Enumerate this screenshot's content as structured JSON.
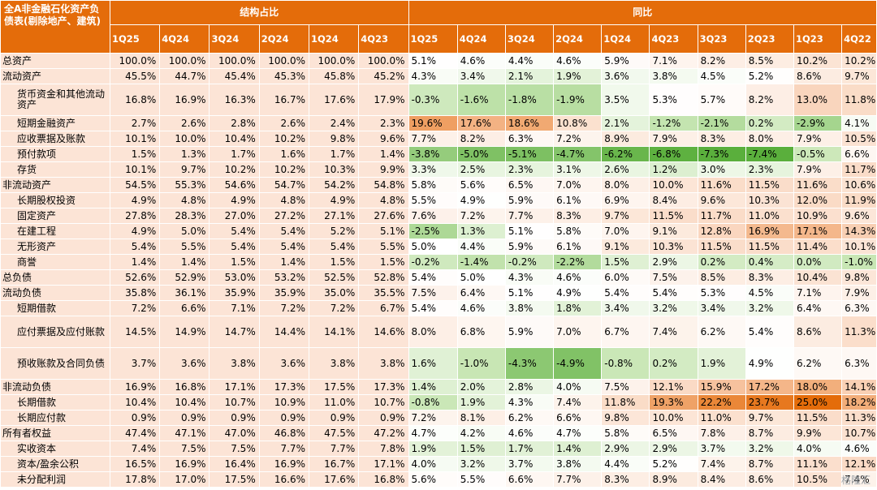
{
  "header": {
    "corner": "全A非金融石化资产负债表(剔除地产、建筑)",
    "group_structure": "结构占比",
    "group_yoy": "同比",
    "structure_quarters": [
      "1Q25",
      "4Q24",
      "3Q24",
      "2Q24",
      "1Q24",
      "4Q23"
    ],
    "yoy_quarters": [
      "1Q25",
      "4Q24",
      "3Q24",
      "2Q24",
      "1Q24",
      "4Q23",
      "3Q23",
      "2Q23",
      "1Q23",
      "4Q22"
    ]
  },
  "rows": [
    {
      "label": "总资产",
      "indent": 1,
      "s": [
        "100.0%",
        "100.0%",
        "100.0%",
        "100.0%",
        "100.0%",
        "100.0%"
      ],
      "y": [
        "5.1%",
        "4.6%",
        "4.4%",
        "4.6%",
        "5.9%",
        "7.1%",
        "8.2%",
        "8.5%",
        "10.2%",
        "10.2%"
      ]
    },
    {
      "label": "流动资产",
      "indent": 1,
      "s": [
        "45.5%",
        "44.7%",
        "45.4%",
        "45.3%",
        "45.8%",
        "45.2%"
      ],
      "y": [
        "4.3%",
        "3.4%",
        "2.1%",
        "1.9%",
        "3.6%",
        "3.8%",
        "4.5%",
        "5.2%",
        "8.6%",
        "9.7%"
      ]
    },
    {
      "label": "货币资金和其他流动资产",
      "indent": 2,
      "s": [
        "16.8%",
        "16.9%",
        "16.3%",
        "16.7%",
        "17.6%",
        "17.9%"
      ],
      "y": [
        "-0.3%",
        "-1.6%",
        "-1.8%",
        "-1.9%",
        "3.5%",
        "5.3%",
        "5.7%",
        "8.2%",
        "13.0%",
        "11.8%"
      ]
    },
    {
      "label": "短期金融资产",
      "indent": 2,
      "s": [
        "2.7%",
        "2.6%",
        "2.8%",
        "2.6%",
        "2.4%",
        "2.3%"
      ],
      "y": [
        "19.6%",
        "17.6%",
        "18.6%",
        "10.8%",
        "2.1%",
        "-1.2%",
        "-2.1%",
        "0.2%",
        "-2.9%",
        "4.1%"
      ]
    },
    {
      "label": "应收票据及账款",
      "indent": 2,
      "s": [
        "10.1%",
        "10.0%",
        "10.4%",
        "10.2%",
        "9.8%",
        "9.6%"
      ],
      "y": [
        "7.7%",
        "8.2%",
        "6.3%",
        "7.2%",
        "8.9%",
        "7.9%",
        "8.3%",
        "8.0%",
        "7.9%",
        "10.5%"
      ]
    },
    {
      "label": "预付款项",
      "indent": 2,
      "s": [
        "1.5%",
        "1.3%",
        "1.7%",
        "1.6%",
        "1.7%",
        "1.4%"
      ],
      "y": [
        "-3.8%",
        "-5.0%",
        "-5.1%",
        "-4.7%",
        "-6.2%",
        "-6.8%",
        "-7.3%",
        "-7.4%",
        "-0.5%",
        "6.6%"
      ]
    },
    {
      "label": "存货",
      "indent": 2,
      "s": [
        "10.1%",
        "9.7%",
        "10.2%",
        "10.2%",
        "10.3%",
        "9.9%"
      ],
      "y": [
        "3.3%",
        "2.5%",
        "2.3%",
        "3.1%",
        "2.6%",
        "1.2%",
        "3.0%",
        "2.3%",
        "7.9%",
        "11.7%"
      ]
    },
    {
      "label": "非流动资产",
      "indent": 1,
      "s": [
        "54.5%",
        "55.3%",
        "54.6%",
        "54.7%",
        "54.2%",
        "54.8%"
      ],
      "y": [
        "5.8%",
        "5.6%",
        "6.5%",
        "7.0%",
        "8.0%",
        "10.0%",
        "11.6%",
        "11.5%",
        "11.6%",
        "10.6%"
      ]
    },
    {
      "label": "长期股权投资",
      "indent": 2,
      "s": [
        "4.9%",
        "4.8%",
        "4.9%",
        "4.8%",
        "4.9%",
        "4.8%"
      ],
      "y": [
        "5.5%",
        "4.9%",
        "5.9%",
        "6.1%",
        "6.9%",
        "8.4%",
        "9.6%",
        "10.3%",
        "12.0%",
        "11.9%"
      ]
    },
    {
      "label": "固定资产",
      "indent": 2,
      "s": [
        "27.8%",
        "28.3%",
        "27.0%",
        "27.2%",
        "27.1%",
        "27.6%"
      ],
      "y": [
        "7.6%",
        "7.2%",
        "7.7%",
        "8.3%",
        "9.7%",
        "11.5%",
        "11.7%",
        "11.0%",
        "10.9%",
        "9.6%"
      ]
    },
    {
      "label": "在建工程",
      "indent": 2,
      "s": [
        "4.9%",
        "5.0%",
        "5.4%",
        "5.4%",
        "5.2%",
        "5.1%"
      ],
      "y": [
        "-2.5%",
        "1.3%",
        "5.1%",
        "5.8%",
        "7.0%",
        "9.1%",
        "12.8%",
        "16.9%",
        "17.1%",
        "14.3%"
      ]
    },
    {
      "label": "无形资产",
      "indent": 2,
      "s": [
        "5.4%",
        "5.5%",
        "5.4%",
        "5.4%",
        "5.4%",
        "5.5%"
      ],
      "y": [
        "5.0%",
        "4.4%",
        "5.9%",
        "6.1%",
        "9.1%",
        "10.3%",
        "11.5%",
        "11.5%",
        "11.4%",
        "10.1%"
      ]
    },
    {
      "label": "商誉",
      "indent": 2,
      "s": [
        "1.4%",
        "1.4%",
        "1.5%",
        "1.4%",
        "1.5%",
        "1.5%"
      ],
      "y": [
        "-0.2%",
        "-1.4%",
        "-0.2%",
        "-2.2%",
        "1.5%",
        "2.9%",
        "0.2%",
        "0.4%",
        "0.0%",
        "-1.0%"
      ]
    },
    {
      "label": "总负债",
      "indent": 1,
      "s": [
        "52.6%",
        "52.9%",
        "53.0%",
        "53.2%",
        "52.5%",
        "52.8%"
      ],
      "y": [
        "5.4%",
        "5.0%",
        "4.3%",
        "4.6%",
        "6.0%",
        "7.5%",
        "8.5%",
        "8.3%",
        "10.4%",
        "9.8%"
      ]
    },
    {
      "label": "流动负债",
      "indent": 1,
      "s": [
        "35.8%",
        "36.1%",
        "35.9%",
        "35.9%",
        "35.0%",
        "35.5%"
      ],
      "y": [
        "7.5%",
        "6.4%",
        "5.1%",
        "4.9%",
        "5.4%",
        "5.4%",
        "5.3%",
        "4.5%",
        "7.1%",
        "7.9%"
      ]
    },
    {
      "label": "短期借款",
      "indent": 2,
      "s": [
        "7.2%",
        "6.6%",
        "7.1%",
        "7.2%",
        "7.2%",
        "6.7%"
      ],
      "y": [
        "5.4%",
        "4.6%",
        "3.8%",
        "1.8%",
        "3.4%",
        "3.2%",
        "3.4%",
        "3.2%",
        "6.4%",
        "6.3%"
      ]
    },
    {
      "label": "应付票据及应付账款",
      "indent": 2,
      "s": [
        "14.5%",
        "14.9%",
        "14.7%",
        "14.4%",
        "14.1%",
        "14.6%"
      ],
      "y": [
        "8.0%",
        "6.8%",
        "5.9%",
        "7.0%",
        "6.7%",
        "7.4%",
        "6.2%",
        "5.4%",
        "8.6%",
        "11.3%"
      ]
    },
    {
      "label": "预收账款及合同负债",
      "indent": 2,
      "s": [
        "3.7%",
        "3.6%",
        "3.8%",
        "3.6%",
        "3.8%",
        "3.8%"
      ],
      "y": [
        "1.6%",
        "-1.0%",
        "-4.3%",
        "-4.9%",
        "-0.8%",
        "0.2%",
        "1.9%",
        "4.9%",
        "6.2%",
        "6.3%"
      ]
    },
    {
      "label": "非流动负债",
      "indent": 1,
      "s": [
        "16.9%",
        "16.8%",
        "17.1%",
        "17.3%",
        "17.5%",
        "17.3%"
      ],
      "y": [
        "1.4%",
        "2.0%",
        "2.8%",
        "4.0%",
        "7.5%",
        "12.1%",
        "15.9%",
        "17.2%",
        "18.0%",
        "14.1%"
      ]
    },
    {
      "label": "长期借款",
      "indent": 2,
      "s": [
        "10.4%",
        "10.4%",
        "10.7%",
        "10.9%",
        "11.0%",
        "10.7%"
      ],
      "y": [
        "-0.8%",
        "1.9%",
        "4.3%",
        "7.4%",
        "11.8%",
        "19.3%",
        "22.2%",
        "23.7%",
        "25.0%",
        "18.2%"
      ]
    },
    {
      "label": "长期应付款",
      "indent": 2,
      "s": [
        "0.9%",
        "0.9%",
        "0.9%",
        "0.9%",
        "0.9%",
        "0.9%"
      ],
      "y": [
        "7.2%",
        "8.1%",
        "6.2%",
        "6.6%",
        "9.8%",
        "10.0%",
        "11.0%",
        "9.7%",
        "11.5%",
        "11.3%"
      ]
    },
    {
      "label": "所有者权益",
      "indent": 1,
      "s": [
        "47.4%",
        "47.1%",
        "47.0%",
        "46.8%",
        "47.5%",
        "47.2%"
      ],
      "y": [
        "4.7%",
        "4.2%",
        "4.6%",
        "4.7%",
        "5.8%",
        "6.5%",
        "7.8%",
        "8.7%",
        "9.9%",
        "10.7%"
      ]
    },
    {
      "label": "实收资本",
      "indent": 2,
      "s": [
        "7.4%",
        "7.5%",
        "7.5%",
        "7.7%",
        "7.7%",
        "7.8%"
      ],
      "y": [
        "1.9%",
        "1.5%",
        "1.7%",
        "1.4%",
        "2.9%",
        "2.9%",
        "3.7%",
        "3.2%",
        "4.0%",
        "4.6%"
      ]
    },
    {
      "label": "资本/盈余公积",
      "indent": 2,
      "s": [
        "16.5%",
        "16.9%",
        "16.4%",
        "16.9%",
        "16.7%",
        "17.1%"
      ],
      "y": [
        "4.0%",
        "3.2%",
        "3.7%",
        "3.8%",
        "4.4%",
        "5.2%",
        "7.4%",
        "8.7%",
        "11.1%",
        "12.1%"
      ]
    },
    {
      "label": "未分配利润",
      "indent": 2,
      "s": [
        "17.8%",
        "17.0%",
        "17.5%",
        "16.6%",
        "17.6%",
        "16.8%"
      ],
      "y": [
        "5.6%",
        "5.5%",
        "6.6%",
        "7.7%",
        "8.3%",
        "8.9%",
        "8.4%",
        "8.6%",
        "10.5%",
        "7.4%"
      ]
    }
  ],
  "watermark": "格隆汇",
  "colors": {
    "header": "#e46c0a",
    "label_bg": "#fce4d6",
    "neg_max": "#4eaa2a",
    "pos_max": "#e46c0a"
  }
}
